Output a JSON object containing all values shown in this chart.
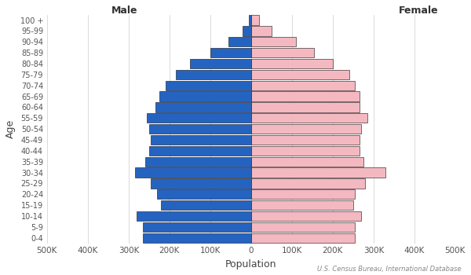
{
  "age_groups": [
    "0-4",
    "5-9",
    "10-14",
    "15-19",
    "20-24",
    "25-29",
    "30-34",
    "35-39",
    "40-44",
    "45-49",
    "50-54",
    "55-59",
    "60-64",
    "65-69",
    "70-74",
    "75-79",
    "80-84",
    "85-89",
    "90-94",
    "95-99",
    "100 +"
  ],
  "male": [
    265000,
    265000,
    280000,
    220000,
    230000,
    245000,
    285000,
    260000,
    250000,
    245000,
    250000,
    255000,
    235000,
    225000,
    210000,
    185000,
    150000,
    100000,
    55000,
    20000,
    5000
  ],
  "female": [
    255000,
    255000,
    270000,
    250000,
    255000,
    280000,
    330000,
    275000,
    265000,
    265000,
    270000,
    285000,
    265000,
    265000,
    255000,
    240000,
    200000,
    155000,
    110000,
    50000,
    20000
  ],
  "male_color": "#2563C0",
  "female_color": "#F4B8C1",
  "edge_color": "#111111",
  "background_color": "#FFFFFF",
  "xlabel": "Population",
  "ylabel": "Age",
  "male_label": "Male",
  "female_label": "Female",
  "source_text": "U.S. Census Bureau, International Database",
  "xlim": 500000,
  "xtick_values": [
    -500000,
    -400000,
    -300000,
    -200000,
    -100000,
    0,
    100000,
    200000,
    300000,
    400000,
    500000
  ],
  "xtick_labels": [
    "500K",
    "400K",
    "300K",
    "200K",
    "100K",
    "0",
    "100K",
    "200K",
    "300K",
    "400K",
    "500K"
  ]
}
